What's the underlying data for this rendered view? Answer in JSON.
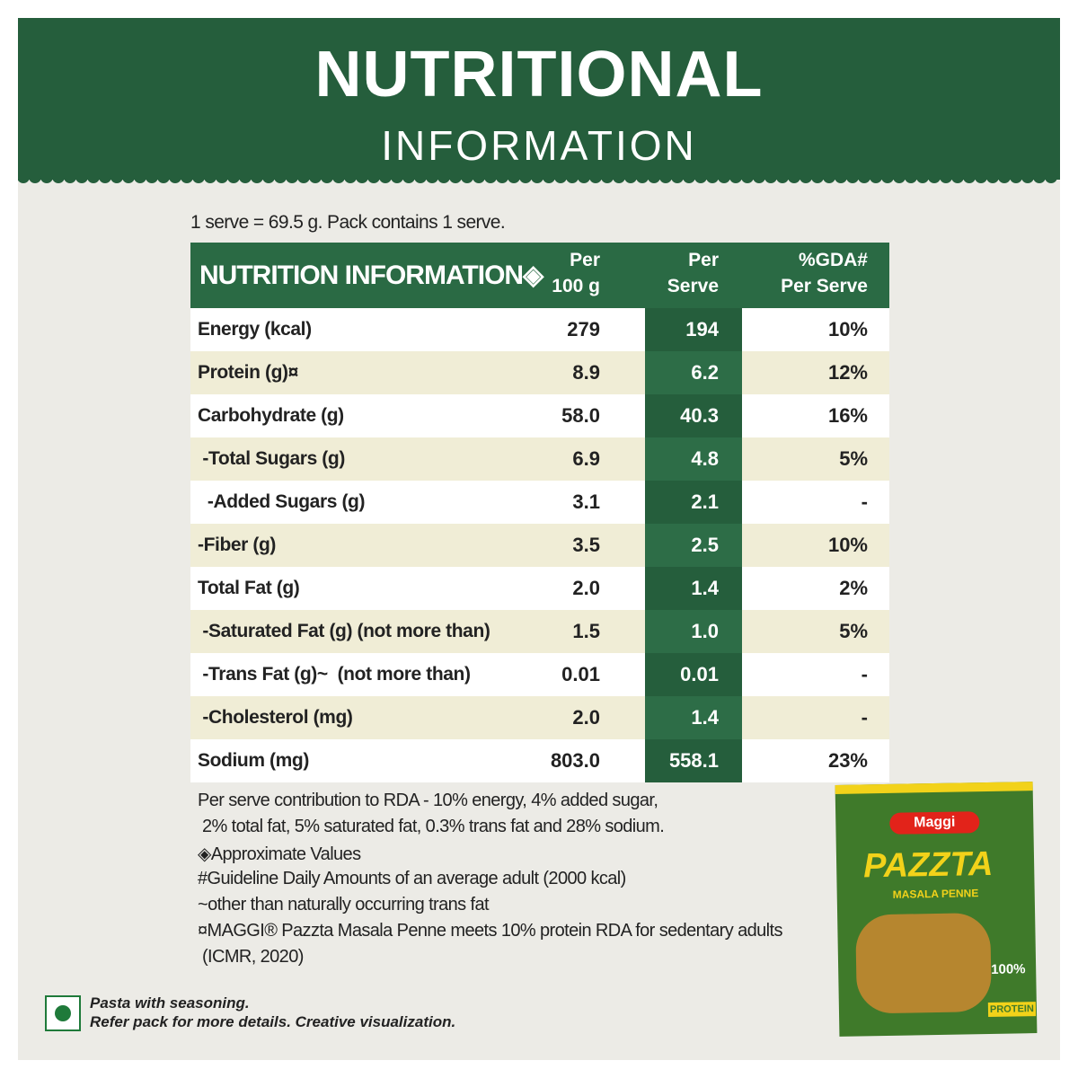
{
  "header": {
    "title": "NUTRITIONAL",
    "subtitle": "INFORMATION"
  },
  "serve_note": "1 serve = 69.5 g. Pack contains 1 serve.",
  "table": {
    "columns": [
      [
        "NUTRITION INFORMATION◈"
      ],
      [
        "Per",
        "100 g"
      ],
      [
        "Per",
        "Serve"
      ],
      [
        "%GDA#",
        "Per Serve"
      ]
    ],
    "rows": [
      [
        "Energy (kcal)",
        "279",
        "194",
        "10%"
      ],
      [
        "Protein (g)¤",
        "8.9",
        "6.2",
        "12%"
      ],
      [
        "Carbohydrate (g)",
        "58.0",
        "40.3",
        "16%"
      ],
      [
        " -Total Sugars (g)",
        "6.9",
        "4.8",
        "5%"
      ],
      [
        "  -Added Sugars (g)",
        "3.1",
        "2.1",
        "-"
      ],
      [
        "-Fiber (g)",
        "3.5",
        "2.5",
        "10%"
      ],
      [
        "Total Fat (g)",
        "2.0",
        "1.4",
        "2%"
      ],
      [
        " -Saturated Fat (g) (not more than)",
        "1.5",
        "1.0",
        "5%"
      ],
      [
        " -Trans Fat (g)~  (not more than)",
        "0.01",
        "0.01",
        "-"
      ],
      [
        " -Cholesterol (mg)",
        "2.0",
        "1.4",
        "-"
      ],
      [
        "Sodium (mg)",
        "803.0",
        "558.1",
        "23%"
      ]
    ]
  },
  "footnotes": [
    "Per serve contribution to RDA - 10% energy, 4% added sugar,",
    " 2% total fat, 5% saturated fat, 0.3% trans fat and 28% sodium.",
    "◈Approximate Values",
    "#Guideline Daily Amounts of an average adult (2000 kcal)",
    "~other than naturally occurring trans fat",
    "¤MAGGI® Pazzta Masala Penne meets 10% protein RDA for sedentary adults",
    " (ICMR, 2020)"
  ],
  "bottom_note": [
    "Pasta with seasoning.",
    "Refer pack for more details. Creative visualization."
  ],
  "pack": {
    "brand": "Maggi",
    "name": "PAZZTA",
    "variant": "MASALA PENNE",
    "badge": "100%",
    "protein": "PROTEIN"
  }
}
